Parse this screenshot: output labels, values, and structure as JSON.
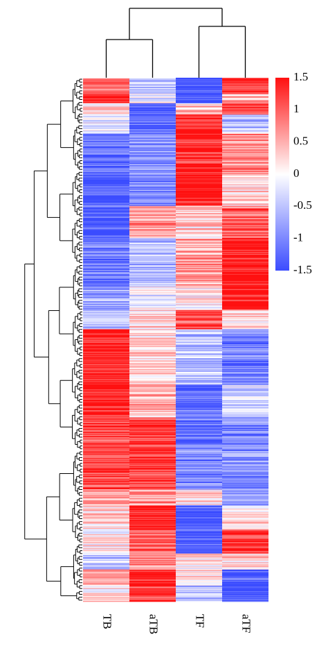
{
  "chart_data": {
    "type": "heatmap",
    "title": "",
    "xlabel": "",
    "ylabel": "",
    "columns": [
      "TB",
      "aTB",
      "TF",
      "aTF"
    ],
    "column_dendrogram": "((TB,aTB),(TF,aTF))",
    "row_dendrogram": true,
    "colorbar": {
      "min": -1.5,
      "max": 1.5,
      "ticks": [
        1.5,
        1,
        0.5,
        0,
        -0.5,
        -1,
        -1.5
      ],
      "tick_labels": [
        "1.5",
        "1",
        "0.5",
        "0",
        "-0.5",
        "-1",
        "-1.5"
      ],
      "low_color": "#3b4cff",
      "mid_color": "#ffffff",
      "high_color": "#ff1010"
    },
    "row_blocks": [
      {
        "rows": 20,
        "values": [
          0.7,
          -0.5,
          -1.4,
          1.3
        ]
      },
      {
        "rows": 12,
        "values": [
          1.45,
          -0.2,
          -1.4,
          0.4
        ]
      },
      {
        "rows": 14,
        "values": [
          0.2,
          -1.4,
          0.3,
          1.1
        ]
      },
      {
        "rows": 24,
        "values": [
          -0.3,
          -1.3,
          1.5,
          -0.5
        ]
      },
      {
        "rows": 50,
        "values": [
          -1.3,
          -0.8,
          1.3,
          0.7
        ]
      },
      {
        "rows": 40,
        "values": [
          -1.4,
          -1.0,
          1.5,
          0.3
        ]
      },
      {
        "rows": 40,
        "values": [
          -1.4,
          0.6,
          0.3,
          1.0
        ]
      },
      {
        "rows": 60,
        "values": [
          -1.1,
          -0.5,
          0.6,
          1.5
        ]
      },
      {
        "rows": 30,
        "values": [
          -0.8,
          -0.1,
          0.1,
          1.5
        ]
      },
      {
        "rows": 24,
        "values": [
          -0.6,
          0.2,
          1.2,
          0.2
        ]
      },
      {
        "rows": 70,
        "values": [
          1.5,
          0.3,
          -0.5,
          -1.1
        ]
      },
      {
        "rows": 40,
        "values": [
          1.4,
          0.4,
          -1.3,
          -0.4
        ]
      },
      {
        "rows": 40,
        "values": [
          1.1,
          1.2,
          -1.2,
          -1.0
        ]
      },
      {
        "rows": 50,
        "values": [
          1.2,
          1.3,
          -1.0,
          -0.9
        ]
      },
      {
        "rows": 20,
        "values": [
          0.6,
          0.6,
          0.2,
          -0.9
        ]
      },
      {
        "rows": 30,
        "values": [
          0.3,
          1.5,
          -1.4,
          0.2
        ]
      },
      {
        "rows": 30,
        "values": [
          0.1,
          0.9,
          -1.4,
          1.2
        ]
      },
      {
        "rows": 20,
        "values": [
          -0.5,
          0.6,
          0.1,
          0.3
        ]
      },
      {
        "rows": 20,
        "values": [
          0.6,
          1.5,
          0.3,
          -1.4
        ]
      },
      {
        "rows": 20,
        "values": [
          0.2,
          1.2,
          -0.5,
          -1.4
        ]
      }
    ]
  }
}
